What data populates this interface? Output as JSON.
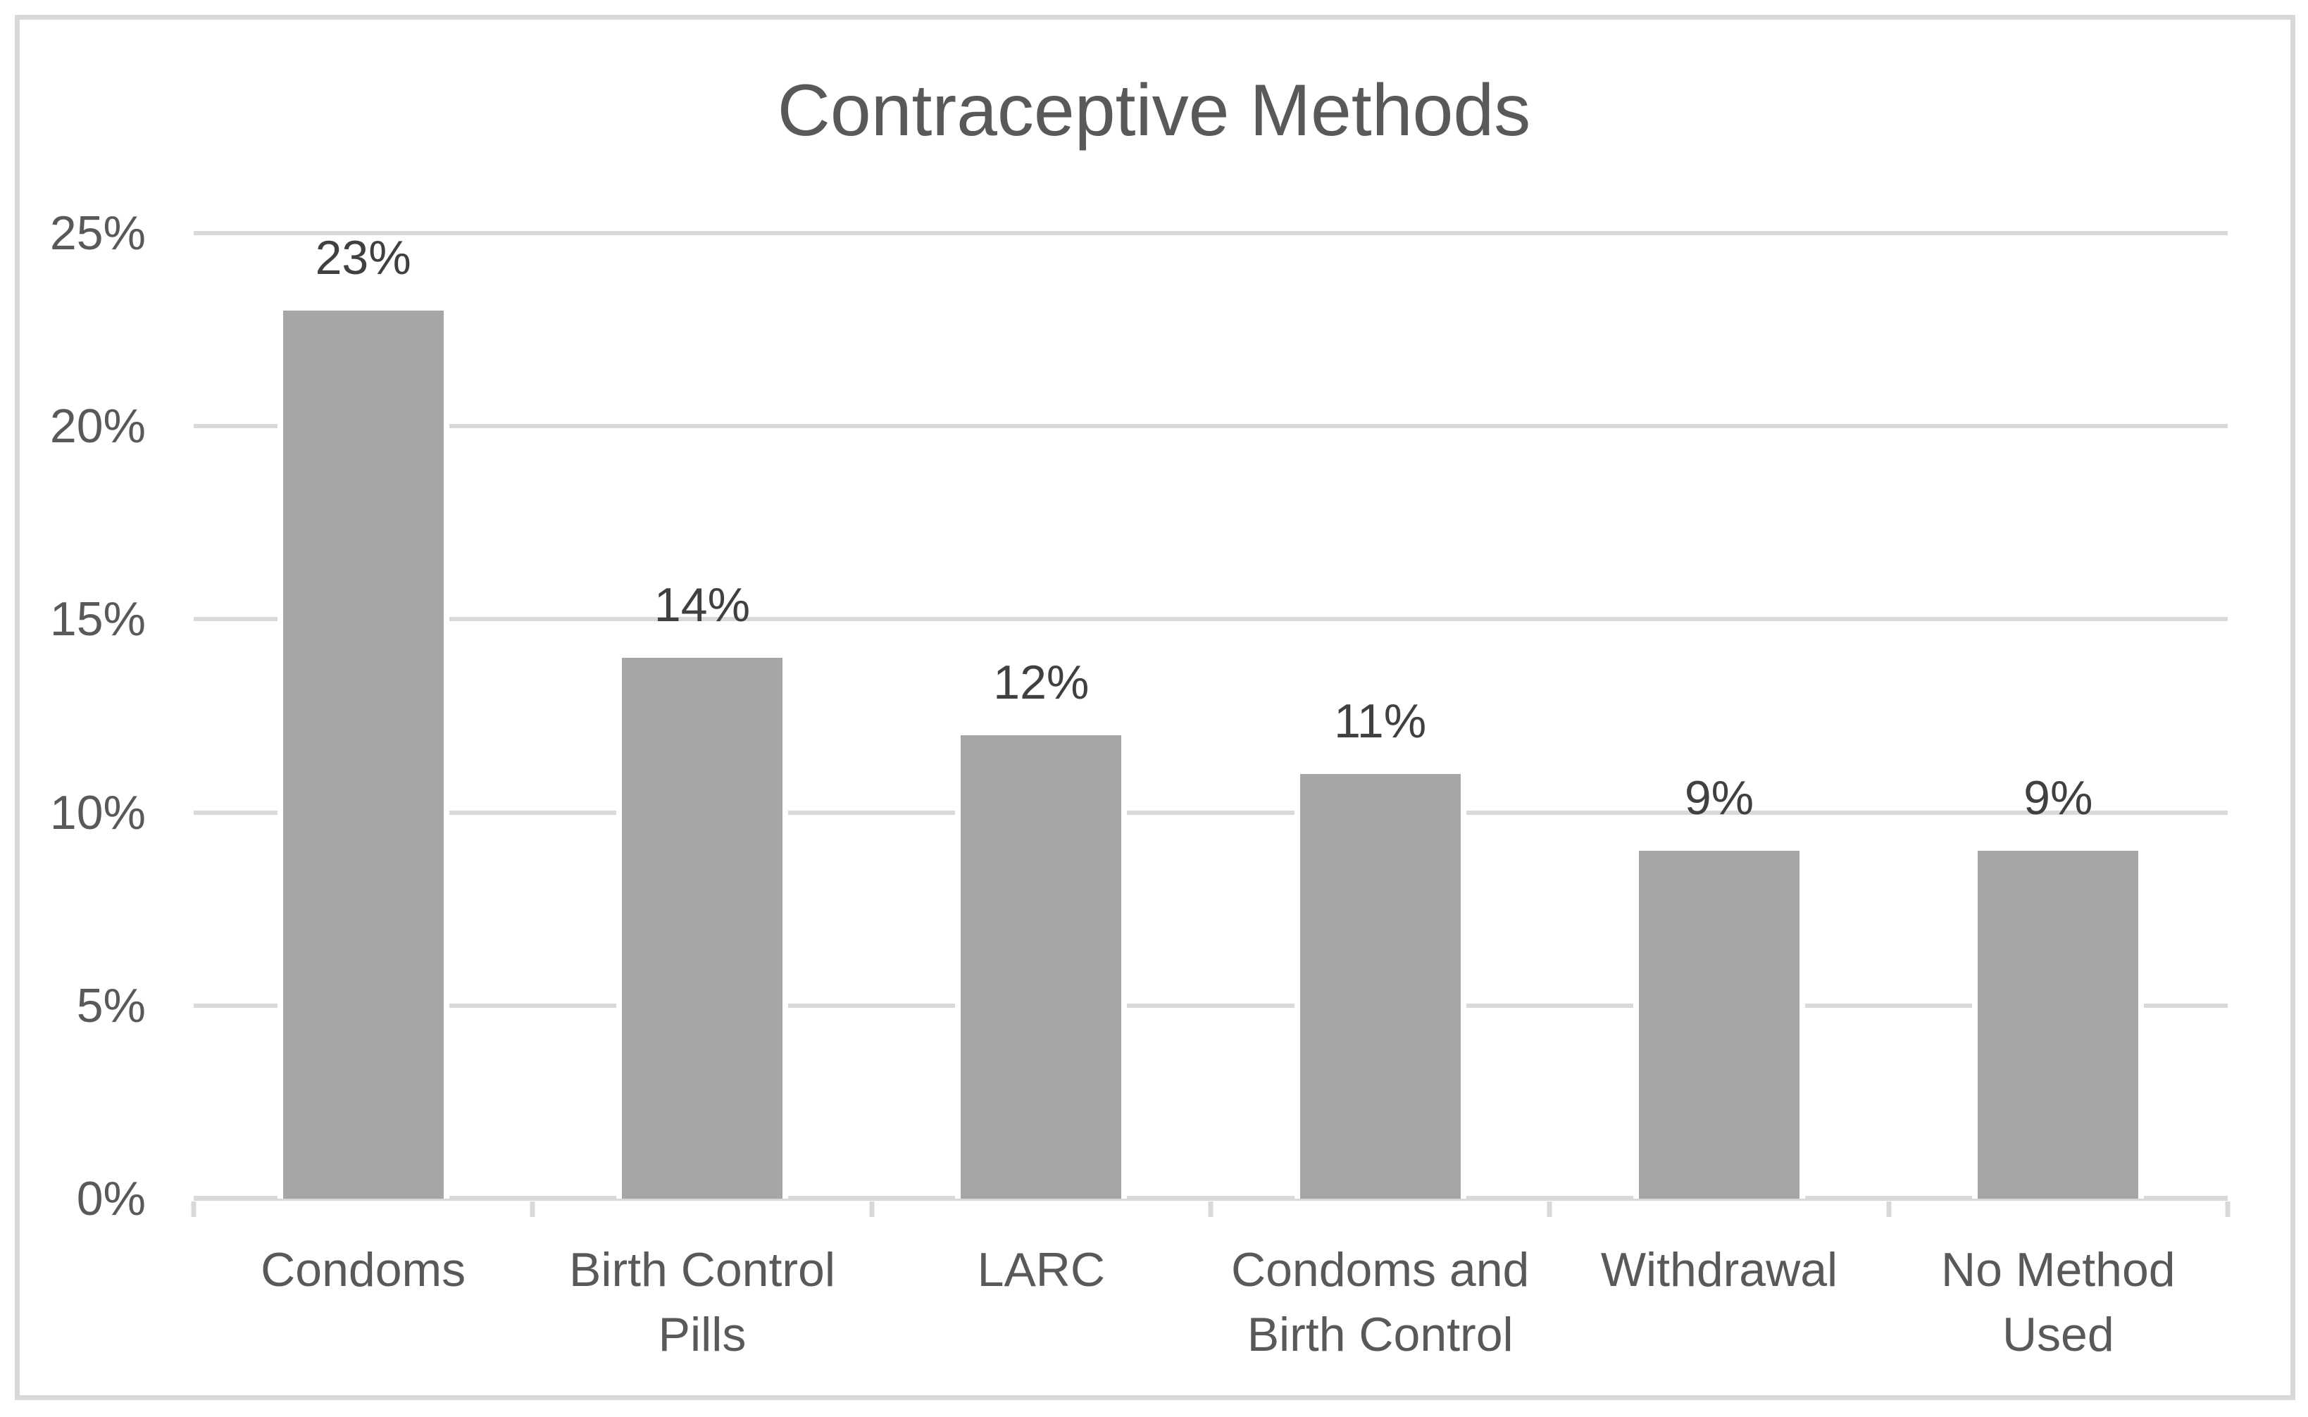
{
  "chart_data": {
    "type": "bar",
    "title": "Contraceptive Methods",
    "categories": [
      "Condoms",
      "Birth Control Pills",
      "LARC",
      "Condoms and Birth Control",
      "Withdrawal",
      "No Method Used"
    ],
    "category_label_lines": [
      [
        "Condoms"
      ],
      [
        "Birth Control",
        "Pills"
      ],
      [
        "LARC"
      ],
      [
        "Condoms and",
        "Birth Control"
      ],
      [
        "Withdrawal"
      ],
      [
        "No Method",
        "Used"
      ]
    ],
    "values": [
      23,
      14,
      12,
      11,
      9,
      9
    ],
    "data_labels": [
      "23%",
      "14%",
      "12%",
      "11%",
      "9%",
      "9%"
    ],
    "xlabel": "",
    "ylabel": "",
    "y_axis": {
      "min": 0,
      "max": 25,
      "step": 5,
      "tick_labels": [
        "25%",
        "20%",
        "15%",
        "10%",
        "5%",
        "0%"
      ],
      "format": "percent"
    },
    "grid": true,
    "legend": false
  },
  "colors": {
    "bar_fill": "#a6a6a6",
    "gridline": "#d9d9d9",
    "axis_line": "#d9d9d9",
    "chart_border": "#d9d9d9",
    "background": "#ffffff",
    "title_text": "#595959",
    "axis_label_text": "#595959",
    "category_label_text": "#595959",
    "data_label_text": "#404040"
  }
}
